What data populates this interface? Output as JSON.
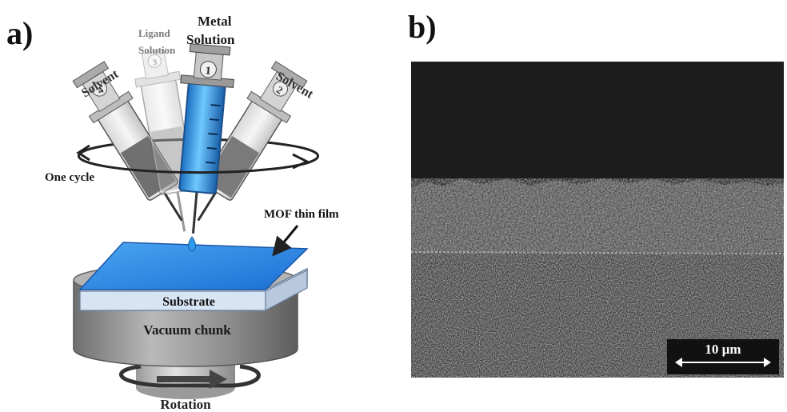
{
  "panels": {
    "a_label": "a)",
    "b_label": "b)"
  },
  "diagram": {
    "syringes": [
      {
        "name": "Solvent",
        "number": "4"
      },
      {
        "name_line1": "Ligand",
        "name_line2": "Solution",
        "number": "3"
      },
      {
        "name_line1": "Metal",
        "name_line2": "Solution",
        "number": "1"
      },
      {
        "name": "Solvent",
        "number": "2"
      }
    ],
    "cycle_label": "One cycle",
    "film_label": "MOF thin film",
    "substrate_label": "Substrate",
    "chuck_label": "Vacuum chunk",
    "rotation_label": "Rotation"
  },
  "sem": {
    "scale_label": "10 µm"
  },
  "colors": {
    "film_blue": "#2f8ae6",
    "metal_liquid": "#2ea0ee",
    "chuck_gray": "#8a8a8a",
    "sem_background": "#1b1b1b"
  }
}
